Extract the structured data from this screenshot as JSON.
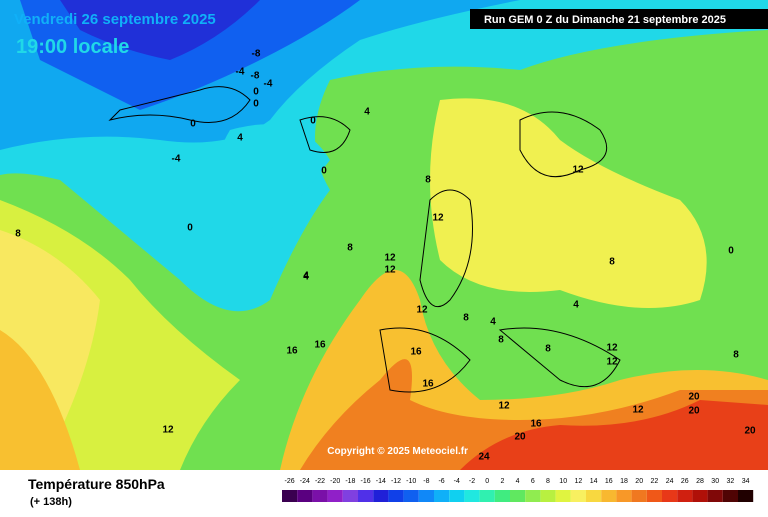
{
  "header": {
    "date": "Vendredi 26 septembre 2025",
    "time": "19:00 locale",
    "run": "Run GEM 0 Z du Dimanche 21 septembre 2025"
  },
  "map": {
    "copyright": "Copyright © 2025 Meteociel.fr",
    "isotherm_labels": [
      "-8",
      "-4",
      "-8",
      "0",
      "-4",
      "0",
      "-4",
      "0",
      "4",
      "0",
      "0",
      "4",
      "0",
      "8",
      "8",
      "12",
      "12",
      "12",
      "8",
      "4",
      "8",
      "12",
      "4",
      "8",
      "12",
      "16",
      "16",
      "12",
      "16",
      "16",
      "12",
      "16",
      "20",
      "20",
      "24",
      "20",
      "12",
      "20",
      "8",
      "12",
      "0",
      "4",
      "8",
      "12",
      "8",
      "4"
    ]
  },
  "legend": {
    "title": "Température 850hPa",
    "lead": "(+ 138h)",
    "ticks": [
      -26,
      -24,
      -22,
      -20,
      -18,
      -16,
      -14,
      -12,
      -10,
      -8,
      -6,
      -4,
      -2,
      0,
      2,
      4,
      6,
      8,
      10,
      12,
      14,
      16,
      18,
      20,
      22,
      24,
      26,
      28,
      30,
      32,
      34
    ],
    "colors": [
      "#3a0050",
      "#5a0080",
      "#7a10a8",
      "#9020c8",
      "#8040e0",
      "#5030e8",
      "#2020d8",
      "#1040e8",
      "#1060f0",
      "#1088f8",
      "#10b0f8",
      "#10d0f0",
      "#20e8e0",
      "#30f0b0",
      "#40ec80",
      "#60e860",
      "#90ec50",
      "#b8f040",
      "#e0f440",
      "#f8f060",
      "#f8d840",
      "#f8b830",
      "#f89828",
      "#f07820",
      "#f05818",
      "#e83818",
      "#d02010",
      "#b01008",
      "#800808",
      "#500404",
      "#200000"
    ]
  }
}
